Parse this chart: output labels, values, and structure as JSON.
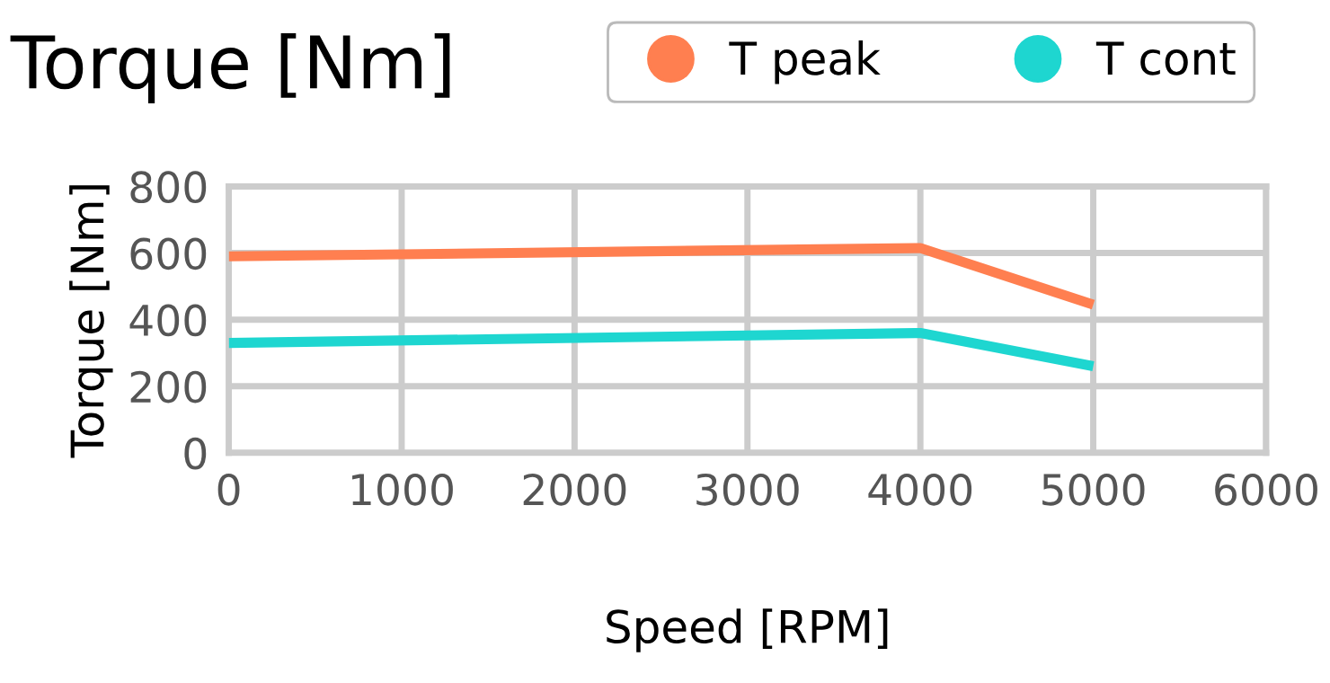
{
  "chart_data": {
    "type": "line",
    "title": "Torque [Nm]",
    "xlabel": "Speed [RPM]",
    "ylabel": "Torque [Nm]",
    "x": [
      0,
      4000,
      5000
    ],
    "series": [
      {
        "name": "T peak",
        "color": "#ff7f50",
        "values": [
          590,
          615,
          445
        ]
      },
      {
        "name": "T cont",
        "color": "#1ed6d0",
        "values": [
          330,
          360,
          260
        ]
      }
    ],
    "xlim": [
      0,
      6000
    ],
    "xticks": [
      0,
      1000,
      2000,
      3000,
      4000,
      5000,
      6000
    ],
    "ylim": [
      0,
      800
    ],
    "yticks": [
      0,
      200,
      400,
      600,
      800
    ],
    "grid": true,
    "legend": "top",
    "marker": "none",
    "line_style": "solid"
  }
}
